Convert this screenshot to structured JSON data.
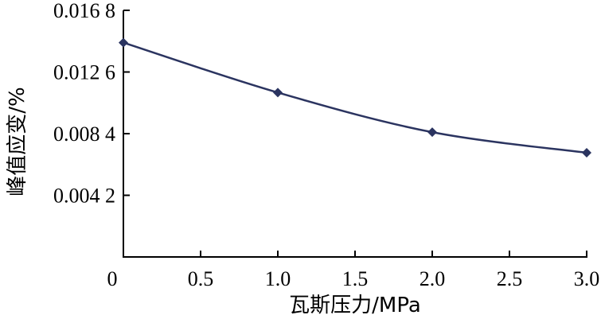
{
  "chart_data": {
    "type": "line",
    "title": "",
    "xlabel": "瓦斯压力/MPa",
    "ylabel": "峰值应变/%",
    "xlim": [
      0,
      3.0
    ],
    "ylim": [
      0,
      0.0168
    ],
    "x_ticks": [
      0.5,
      1.0,
      1.5,
      2.0,
      2.5,
      3.0
    ],
    "x_tick_labels": [
      "0.5",
      "1.0",
      "1.5",
      "2.0",
      "2.5",
      "3.0"
    ],
    "origin_label": "0",
    "y_ticks": [
      0.0042,
      0.0084,
      0.0126,
      0.0168
    ],
    "y_tick_labels": [
      "0.004 2",
      "0.008 4",
      "0.012 6",
      "0.016 8"
    ],
    "grid": false,
    "legend": "none",
    "series": [
      {
        "x": [
          0,
          1.0,
          2.0,
          3.0
        ],
        "y": [
          0.0146,
          0.0112,
          0.0085,
          0.0071
        ],
        "color": "#2b3460",
        "marker": "diamond"
      }
    ]
  }
}
